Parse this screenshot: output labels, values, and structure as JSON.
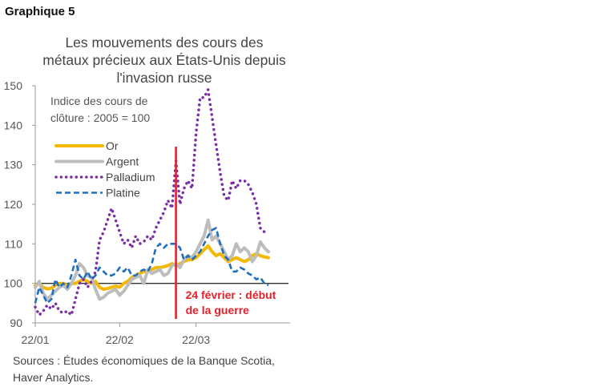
{
  "figure": {
    "label": "Graphique 5",
    "source_lines": [
      "Sources : Études économiques de la Banque Scotia,",
      "Haver Analytics."
    ]
  },
  "chart_data": {
    "type": "line",
    "title_lines": [
      "Les mouvements des cours des",
      "métaux précieux aux États-Unis depuis",
      "l'invasion russe"
    ],
    "note_lines": [
      "Indice des cours de",
      "clôture : 2005 = 100"
    ],
    "xlabel": "",
    "ylabel": "",
    "ylim": [
      90,
      150
    ],
    "yticks": [
      90,
      100,
      110,
      120,
      130,
      140,
      150
    ],
    "xlim": [
      0,
      61
    ],
    "xticks": [
      {
        "x": 0,
        "label": "22/01"
      },
      {
        "x": 21,
        "label": "22/02"
      },
      {
        "x": 40,
        "label": "22/03"
      }
    ],
    "baseline": 100,
    "event": {
      "x": 35,
      "label_lines": [
        "24 février : début",
        "de la guerre"
      ],
      "color": "#e8202a"
    },
    "series": [
      {
        "name": "Or",
        "color": "#f5b800",
        "style": "solid",
        "values": [
          [
            0,
            99.5
          ],
          [
            1,
            100
          ],
          [
            2,
            99
          ],
          [
            3,
            98.6
          ],
          [
            4,
            98.8
          ],
          [
            5,
            99.5
          ],
          [
            6,
            100
          ],
          [
            7,
            100
          ],
          [
            8,
            99.5
          ],
          [
            9,
            100
          ],
          [
            10,
            100
          ],
          [
            11,
            100.5
          ],
          [
            12,
            101
          ],
          [
            13,
            100.5
          ],
          [
            14,
            100
          ],
          [
            15,
            100.5
          ],
          [
            16,
            99
          ],
          [
            17,
            98.5
          ],
          [
            18,
            98.7
          ],
          [
            19,
            99
          ],
          [
            20,
            99.3
          ],
          [
            21,
            99
          ],
          [
            22,
            100
          ],
          [
            23,
            100.5
          ],
          [
            24,
            101.5
          ],
          [
            25,
            102
          ],
          [
            26,
            102.5
          ],
          [
            27,
            103
          ],
          [
            28,
            103
          ],
          [
            29,
            103.5
          ],
          [
            30,
            104
          ],
          [
            31,
            104
          ],
          [
            32,
            104.2
          ],
          [
            33,
            104.5
          ],
          [
            34,
            105
          ],
          [
            35,
            104.5
          ],
          [
            36,
            105
          ],
          [
            37,
            105.5
          ],
          [
            38,
            106
          ],
          [
            39,
            106
          ],
          [
            40,
            106.5
          ],
          [
            41,
            107.5
          ],
          [
            42,
            108.5
          ],
          [
            43,
            109.5
          ],
          [
            44,
            108
          ],
          [
            45,
            107
          ],
          [
            46,
            107.5
          ],
          [
            47,
            106.5
          ],
          [
            48,
            105.5
          ],
          [
            49,
            106
          ],
          [
            50,
            106.5
          ],
          [
            51,
            106
          ],
          [
            52,
            105.5
          ],
          [
            53,
            106
          ],
          [
            54,
            107
          ],
          [
            55,
            107.5
          ],
          [
            56,
            107
          ],
          [
            57,
            106.7
          ],
          [
            58,
            106.5
          ]
        ]
      },
      {
        "name": "Argent",
        "color": "#bdbdbd",
        "style": "solid",
        "values": [
          [
            0,
            99
          ],
          [
            1,
            100.5
          ],
          [
            2,
            97.5
          ],
          [
            3,
            96
          ],
          [
            4,
            97
          ],
          [
            5,
            98
          ],
          [
            6,
            99
          ],
          [
            7,
            99.5
          ],
          [
            8,
            98.5
          ],
          [
            9,
            100
          ],
          [
            10,
            102
          ],
          [
            11,
            105
          ],
          [
            12,
            104
          ],
          [
            13,
            102
          ],
          [
            14,
            101.5
          ],
          [
            15,
            98.5
          ],
          [
            16,
            96
          ],
          [
            17,
            96.5
          ],
          [
            18,
            97.5
          ],
          [
            19,
            98
          ],
          [
            20,
            98.5
          ],
          [
            21,
            97
          ],
          [
            22,
            98
          ],
          [
            23,
            99.5
          ],
          [
            24,
            101
          ],
          [
            25,
            101.5
          ],
          [
            26,
            102
          ],
          [
            27,
            100
          ],
          [
            28,
            103.5
          ],
          [
            29,
            102.5
          ],
          [
            30,
            103
          ],
          [
            31,
            103.5
          ],
          [
            32,
            102
          ],
          [
            33,
            102.5
          ],
          [
            34,
            104.5
          ],
          [
            35,
            105
          ],
          [
            36,
            104
          ],
          [
            37,
            106
          ],
          [
            38,
            107
          ],
          [
            39,
            106.5
          ],
          [
            40,
            108
          ],
          [
            41,
            110
          ],
          [
            42,
            112
          ],
          [
            43,
            116
          ],
          [
            44,
            111
          ],
          [
            45,
            112
          ],
          [
            46,
            110
          ],
          [
            47,
            108
          ],
          [
            48,
            106
          ],
          [
            49,
            107
          ],
          [
            50,
            110
          ],
          [
            51,
            108
          ],
          [
            52,
            109
          ],
          [
            53,
            108
          ],
          [
            54,
            105.5
          ],
          [
            55,
            107
          ],
          [
            56,
            110.5
          ],
          [
            57,
            109
          ],
          [
            58,
            108
          ]
        ]
      },
      {
        "name": "Palladium",
        "color": "#7b2fa5",
        "style": "dotted",
        "values": [
          [
            0,
            94
          ],
          [
            1,
            92
          ],
          [
            2,
            93
          ],
          [
            3,
            94.5
          ],
          [
            4,
            93.5
          ],
          [
            5,
            95
          ],
          [
            6,
            93
          ],
          [
            7,
            92.5
          ],
          [
            8,
            93
          ],
          [
            9,
            92
          ],
          [
            10,
            96
          ],
          [
            11,
            100
          ],
          [
            12,
            101
          ],
          [
            13,
            99
          ],
          [
            14,
            100.5
          ],
          [
            15,
            103
          ],
          [
            16,
            111
          ],
          [
            17,
            113
          ],
          [
            18,
            116
          ],
          [
            19,
            119
          ],
          [
            20,
            116
          ],
          [
            21,
            113
          ],
          [
            22,
            110
          ],
          [
            23,
            111
          ],
          [
            24,
            109
          ],
          [
            25,
            112
          ],
          [
            26,
            110
          ],
          [
            27,
            110.5
          ],
          [
            28,
            112
          ],
          [
            29,
            111
          ],
          [
            30,
            114
          ],
          [
            31,
            116
          ],
          [
            32,
            118
          ],
          [
            33,
            121
          ],
          [
            34,
            119
          ],
          [
            35,
            131
          ],
          [
            36,
            120
          ],
          [
            37,
            124
          ],
          [
            38,
            126
          ],
          [
            39,
            124
          ],
          [
            40,
            138
          ],
          [
            41,
            147
          ],
          [
            42,
            147
          ],
          [
            43,
            149
          ],
          [
            44,
            142
          ],
          [
            45,
            135
          ],
          [
            46,
            128
          ],
          [
            47,
            122
          ],
          [
            48,
            121
          ],
          [
            49,
            126
          ],
          [
            50,
            124
          ],
          [
            51,
            126
          ],
          [
            52,
            126
          ],
          [
            53,
            125
          ],
          [
            54,
            123
          ],
          [
            55,
            120
          ],
          [
            56,
            114
          ],
          [
            57,
            113
          ]
        ]
      },
      {
        "name": "Platine",
        "color": "#1f6fbf",
        "style": "dashed",
        "values": [
          [
            0,
            95
          ],
          [
            1,
            99
          ],
          [
            2,
            97
          ],
          [
            3,
            95
          ],
          [
            4,
            96
          ],
          [
            5,
            101
          ],
          [
            6,
            99
          ],
          [
            7,
            100
          ],
          [
            8,
            99
          ],
          [
            9,
            102
          ],
          [
            10,
            106
          ],
          [
            11,
            102
          ],
          [
            12,
            101
          ],
          [
            13,
            103
          ],
          [
            14,
            101
          ],
          [
            15,
            102
          ],
          [
            16,
            104
          ],
          [
            17,
            103
          ],
          [
            18,
            102
          ],
          [
            19,
            102
          ],
          [
            20,
            102.5
          ],
          [
            21,
            104
          ],
          [
            22,
            103
          ],
          [
            23,
            104
          ],
          [
            24,
            102
          ],
          [
            25,
            102
          ],
          [
            26,
            103
          ],
          [
            27,
            103.5
          ],
          [
            28,
            103
          ],
          [
            29,
            105
          ],
          [
            30,
            109
          ],
          [
            31,
            110
          ],
          [
            32,
            109
          ],
          [
            33,
            110
          ],
          [
            34,
            110
          ],
          [
            35,
            110
          ],
          [
            36,
            109
          ],
          [
            37,
            106
          ],
          [
            38,
            107
          ],
          [
            39,
            106
          ],
          [
            40,
            107
          ],
          [
            41,
            108
          ],
          [
            42,
            110
          ],
          [
            43,
            112
          ],
          [
            44,
            113.5
          ],
          [
            45,
            114
          ],
          [
            46,
            110
          ],
          [
            47,
            107
          ],
          [
            48,
            106
          ],
          [
            49,
            103
          ],
          [
            50,
            103
          ],
          [
            51,
            104
          ],
          [
            52,
            103.5
          ],
          [
            53,
            102.5
          ],
          [
            54,
            102
          ],
          [
            55,
            101
          ],
          [
            56,
            101.5
          ],
          [
            57,
            100
          ],
          [
            58,
            99.5
          ]
        ]
      }
    ]
  }
}
